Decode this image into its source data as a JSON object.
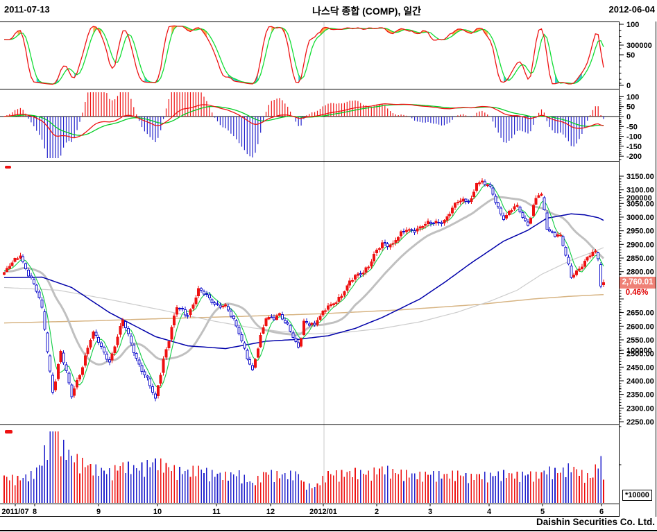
{
  "header": {
    "date_start": "2011-07-13",
    "date_end": "2012-06-04",
    "title": "나스닥 종합 (COMP), 일간"
  },
  "footer": {
    "text": "Daishin Securities Co. Ltd."
  },
  "price_marker": {
    "value": "2,760.01",
    "change_pct": "0.46%"
  },
  "volume_unit_label": "*10000",
  "colors": {
    "up_candle": "#ee1111",
    "down_candle": "#1111cc",
    "ma5": "#11cc44",
    "ma20": "#c0c0c0",
    "ma60": "#0000aa",
    "ma120": "#cccccc",
    "ma240": "#d7b483",
    "stoch_fast": "#ee1111",
    "stoch_slow": "#11dd33",
    "overbought_fill": "#ffa64d",
    "oversold_fill": "#33cccc",
    "macd_line": "#ee1111",
    "macd_signal": "#00cc22",
    "hist_pos": "#ee1111",
    "hist_neg": "#2222cc",
    "vol_up": "#ee1111",
    "vol_down": "#2222cc",
    "gridline": "#c8c8c8",
    "marker_bg": "#ef8176",
    "pct_text": "#e00000"
  },
  "x_axis": {
    "month_labels": [
      "2011/07",
      "8",
      "9",
      "10",
      "11",
      "12",
      "2012/01",
      "2",
      "3",
      "4",
      "5",
      "6"
    ]
  },
  "y_axis": {
    "stoch_ticks": [
      "100",
      "50",
      "0"
    ],
    "macd_ticks": [
      "100",
      "50",
      "0",
      "-50",
      "-100",
      "-150",
      "-200"
    ],
    "price_ticks": [
      "3150.00",
      "3100.00",
      "3050.00",
      "3000.00",
      "2950.00",
      "2900.00",
      "2850.00",
      "2800.00",
      "2750.00",
      "2700.00",
      "2650.00",
      "2600.00",
      "2550.00",
      "2500.00",
      "2450.00",
      "2400.00",
      "2350.00",
      "2300.00",
      "2250.00"
    ],
    "volume_ticks": [
      "100000",
      "200000",
      "300000"
    ]
  },
  "chart_data": {
    "type": "candlestick",
    "title": "나스닥 종합 (COMP), 일간",
    "period": [
      "2011-07-13",
      "2012-06-04"
    ],
    "days": 223,
    "last_close": 2760.01,
    "last_change_pct": 0.46,
    "price_axis_range": [
      2250,
      3150
    ],
    "stoch_axis_range": [
      0,
      100
    ],
    "macd_axis_range": [
      -200,
      100
    ],
    "volume_axis_range": [
      0,
      350000
    ],
    "close_anchors": [
      [
        0,
        2796
      ],
      [
        6,
        2858
      ],
      [
        11,
        2756
      ],
      [
        14,
        2669
      ],
      [
        18,
        2358
      ],
      [
        21,
        2508
      ],
      [
        25,
        2342
      ],
      [
        33,
        2579
      ],
      [
        39,
        2468
      ],
      [
        44,
        2622
      ],
      [
        49,
        2483
      ],
      [
        56,
        2336
      ],
      [
        59,
        2479
      ],
      [
        64,
        2668
      ],
      [
        68,
        2637
      ],
      [
        72,
        2738
      ],
      [
        77,
        2686
      ],
      [
        82,
        2678
      ],
      [
        87,
        2573
      ],
      [
        92,
        2441
      ],
      [
        97,
        2627
      ],
      [
        102,
        2646
      ],
      [
        109,
        2523
      ],
      [
        111,
        2618
      ],
      [
        115,
        2605
      ],
      [
        120,
        2674
      ],
      [
        125,
        2710
      ],
      [
        130,
        2787
      ],
      [
        135,
        2817
      ],
      [
        140,
        2906
      ],
      [
        144,
        2904
      ],
      [
        149,
        2952
      ],
      [
        154,
        2964
      ],
      [
        158,
        2976
      ],
      [
        163,
        2988
      ],
      [
        168,
        3055
      ],
      [
        173,
        3068
      ],
      [
        175,
        3123
      ],
      [
        180,
        3113
      ],
      [
        185,
        2991
      ],
      [
        190,
        3043
      ],
      [
        194,
        2970
      ],
      [
        197,
        3069
      ],
      [
        199,
        3084
      ],
      [
        201,
        2956
      ],
      [
        206,
        2934
      ],
      [
        210,
        2779
      ],
      [
        215,
        2838
      ],
      [
        218,
        2871
      ],
      [
        220,
        2847
      ],
      [
        221,
        2747
      ],
      [
        222,
        2760.01
      ]
    ],
    "volume_anchors_x10000": [
      [
        0,
        150
      ],
      [
        6,
        140
      ],
      [
        11,
        170
      ],
      [
        14,
        240
      ],
      [
        18,
        470
      ],
      [
        21,
        340
      ],
      [
        25,
        270
      ],
      [
        33,
        200
      ],
      [
        39,
        180
      ],
      [
        44,
        220
      ],
      [
        49,
        200
      ],
      [
        56,
        240
      ],
      [
        59,
        220
      ],
      [
        64,
        190
      ],
      [
        68,
        180
      ],
      [
        72,
        200
      ],
      [
        77,
        170
      ],
      [
        82,
        160
      ],
      [
        87,
        170
      ],
      [
        92,
        110
      ],
      [
        97,
        180
      ],
      [
        102,
        160
      ],
      [
        109,
        170
      ],
      [
        111,
        110
      ],
      [
        115,
        90
      ],
      [
        120,
        170
      ],
      [
        125,
        170
      ],
      [
        130,
        180
      ],
      [
        135,
        170
      ],
      [
        140,
        200
      ],
      [
        144,
        180
      ],
      [
        149,
        170
      ],
      [
        154,
        160
      ],
      [
        158,
        170
      ],
      [
        163,
        160
      ],
      [
        168,
        170
      ],
      [
        173,
        150
      ],
      [
        175,
        160
      ],
      [
        180,
        160
      ],
      [
        185,
        170
      ],
      [
        190,
        160
      ],
      [
        194,
        170
      ],
      [
        197,
        160
      ],
      [
        199,
        170
      ],
      [
        201,
        190
      ],
      [
        206,
        180
      ],
      [
        210,
        210
      ],
      [
        215,
        160
      ],
      [
        218,
        150
      ],
      [
        220,
        260
      ],
      [
        221,
        240
      ],
      [
        222,
        160
      ]
    ],
    "ma60_anchors": [
      [
        0,
        2778
      ],
      [
        14,
        2780
      ],
      [
        25,
        2742
      ],
      [
        39,
        2650
      ],
      [
        56,
        2562
      ],
      [
        68,
        2528
      ],
      [
        82,
        2518
      ],
      [
        97,
        2545
      ],
      [
        109,
        2552
      ],
      [
        120,
        2565
      ],
      [
        130,
        2592
      ],
      [
        140,
        2632
      ],
      [
        154,
        2700
      ],
      [
        163,
        2760
      ],
      [
        173,
        2832
      ],
      [
        185,
        2912
      ],
      [
        194,
        2952
      ],
      [
        201,
        2996
      ],
      [
        210,
        3012
      ],
      [
        215,
        3008
      ],
      [
        220,
        2998
      ],
      [
        222,
        2988
      ]
    ],
    "ma120_anchors": [
      [
        0,
        2742
      ],
      [
        20,
        2732
      ],
      [
        39,
        2698
      ],
      [
        59,
        2658
      ],
      [
        78,
        2618
      ],
      [
        92,
        2594
      ],
      [
        103,
        2580
      ],
      [
        115,
        2572
      ],
      [
        127,
        2578
      ],
      [
        140,
        2592
      ],
      [
        154,
        2616
      ],
      [
        168,
        2652
      ],
      [
        180,
        2692
      ],
      [
        190,
        2732
      ],
      [
        199,
        2790
      ],
      [
        210,
        2842
      ],
      [
        218,
        2872
      ],
      [
        222,
        2888
      ]
    ],
    "ma240_anchors": [
      [
        0,
        2612
      ],
      [
        30,
        2619
      ],
      [
        59,
        2628
      ],
      [
        88,
        2636
      ],
      [
        118,
        2646
      ],
      [
        147,
        2660
      ],
      [
        176,
        2680
      ],
      [
        196,
        2700
      ],
      [
        210,
        2710
      ],
      [
        222,
        2716
      ]
    ],
    "indicators": {
      "top_panel": "stochastic (fast red / slow green, 0-100)",
      "second_panel": "MACD oscillator (red MACD, green signal, red/blue histogram)",
      "overlays": "MA5 green, MA20 thick gray, MA60 navy, MA120 light gray, MA240 tan",
      "bottom_panel": "volume, unit *10000, red up-day / blue down-day"
    }
  }
}
